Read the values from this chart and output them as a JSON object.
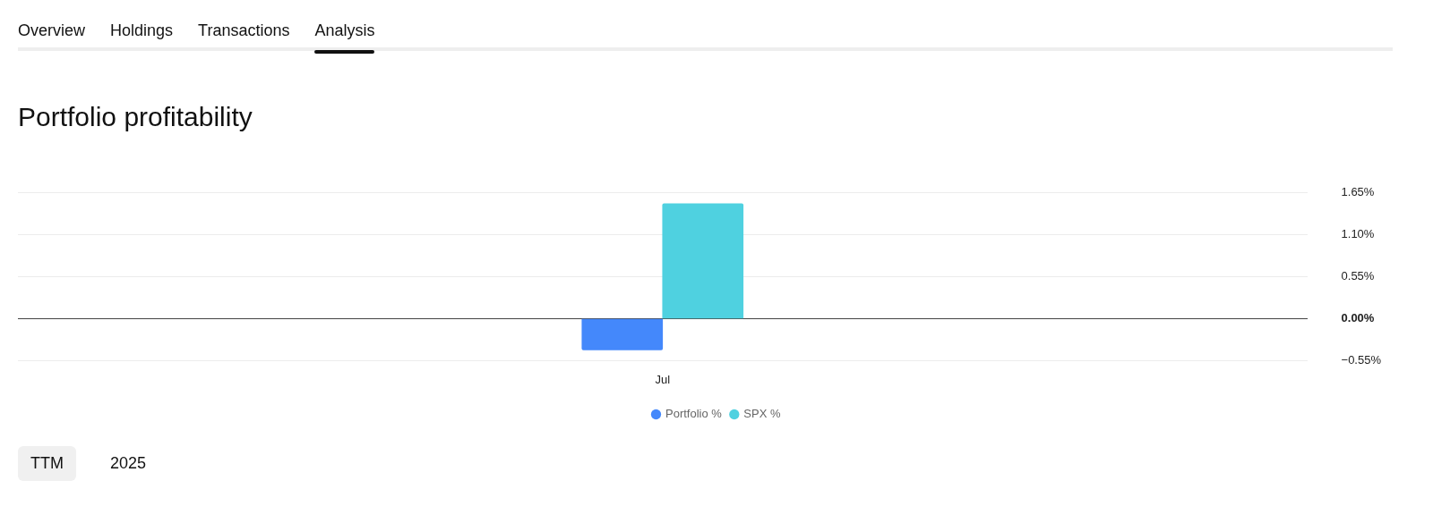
{
  "chart_data": {
    "type": "bar",
    "title": "Portfolio profitability",
    "categories": [
      "Jul"
    ],
    "series": [
      {
        "name": "Portfolio %",
        "color": "#4488fb",
        "values": [
          -0.41
        ]
      },
      {
        "name": "SPX %",
        "color": "#4fd1e0",
        "values": [
          1.51
        ]
      }
    ],
    "ylim": [
      -0.55,
      1.65
    ],
    "yticks": [
      {
        "value": -0.55,
        "label": "−0.55%"
      },
      {
        "value": 0,
        "label": "0.00%"
      },
      {
        "value": 0.55,
        "label": "0.55%"
      },
      {
        "value": 1.1,
        "label": "1.10%"
      },
      {
        "value": 1.65,
        "label": "1.65%"
      }
    ],
    "grid": "y",
    "legend": "bottom",
    "annotations": [
      "Overview",
      "Holdings",
      "Transactions",
      "Analysis",
      "TTM",
      "2025"
    ]
  }
}
